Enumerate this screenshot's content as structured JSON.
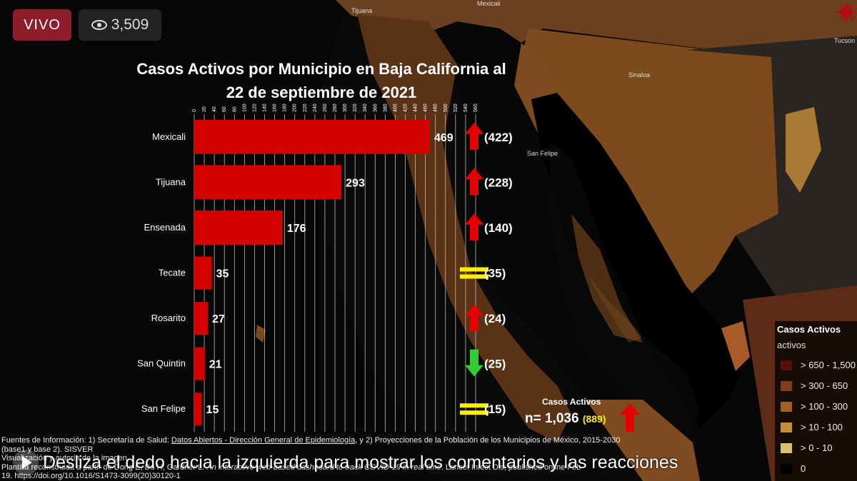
{
  "live_badge": "VIVO",
  "view_count": "3,509",
  "chart_data": {
    "type": "bar",
    "title_line1": "Casos Activos por Municipio en Baja California al",
    "title_line2": "22 de septiembre de 2021",
    "categories": [
      "Mexicali",
      "Tijuana",
      "Ensenada",
      "Tecate",
      "Rosarito",
      "San Quintin",
      "San Felipe"
    ],
    "values": [
      469,
      293,
      176,
      35,
      27,
      21,
      15
    ],
    "previous": [
      "(422)",
      "(228)",
      "(140)",
      "(35)",
      "(24)",
      "(25)",
      "(15)"
    ],
    "trend": [
      "up",
      "up",
      "up",
      "equal",
      "up",
      "down",
      "equal"
    ],
    "xlim": [
      0,
      560
    ],
    "xticks": [
      "0",
      "20",
      "40",
      "60",
      "80",
      "100",
      "120",
      "140",
      "160",
      "180",
      "200",
      "220",
      "240",
      "260",
      "280",
      "300",
      "320",
      "340",
      "360",
      "380",
      "400",
      "420",
      "440",
      "460",
      "480",
      "500",
      "520",
      "540",
      "560"
    ],
    "grid": true,
    "bar_color": "#d40000"
  },
  "total": {
    "label": "Casos Activos",
    "value": "n= 1,036",
    "previous": "(889)"
  },
  "legend": {
    "title": "Casos Activos",
    "subtitle": "activos",
    "items": [
      {
        "label": "> 650 - 1,500",
        "color": "#5a0d0d"
      },
      {
        "label": "> 300 - 650",
        "color": "#7e3f1b"
      },
      {
        "label": "> 100 - 300",
        "color": "#a35f23"
      },
      {
        "label": "> 10 - 100",
        "color": "#c48c35"
      },
      {
        "label": "> 0 - 10",
        "color": "#d9c36a"
      },
      {
        "label": "0",
        "color": "#000000"
      }
    ]
  },
  "map_labels": [
    "Tijuana",
    "Mexicali",
    "Tucson",
    "San Felipe",
    "Sinaloa"
  ],
  "sources": {
    "line1_a": "Fuentes de Información: 1) Secretaría de Salud: ",
    "line1_link": "Datos Abiertos - Dirección General de Epidemiología",
    "line1_b": ", y 2) Proyecciones de la Población de los Municipios de México, 2015-2030",
    "line2": "(base1 y base 2). SISVER",
    "line3": "Visualización y autoría de la imagen",
    "line4_a": "Plantilla reconstruida a partir de Dong E, Du H, Gardner L. ",
    "line4_i": "An interactive web-based dashboard to track COVID-19 in real time",
    "line4_b": ". Lancet Infect Dis; published online Feb",
    "line5": "19. https://doi.org/10.1016/S1473-3099(20)30120-1"
  },
  "overlay_hint": "Desliza el dedo hacia la izquierda para mostrar los comentarios y las reacciones"
}
